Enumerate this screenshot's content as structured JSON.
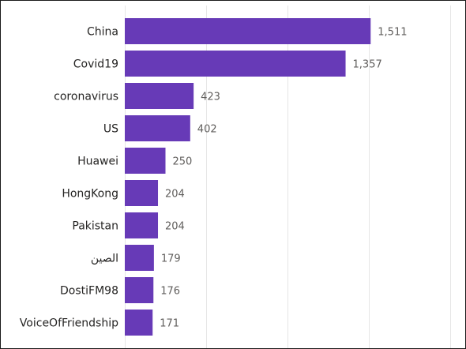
{
  "chart_data": {
    "type": "bar",
    "orientation": "horizontal",
    "title": "",
    "xlabel": "",
    "ylabel": "",
    "categories": [
      "China",
      "Covid19",
      "coronavirus",
      "US",
      "Huawei",
      "HongKong",
      "Pakistan",
      "الصين",
      "DostiFM98",
      "VoiceOfFriendship"
    ],
    "values": [
      1511,
      1357,
      423,
      402,
      250,
      204,
      204,
      179,
      176,
      171
    ],
    "value_labels": [
      "1,511",
      "1,357",
      "423",
      "402",
      "250",
      "204",
      "204",
      "179",
      "176",
      "171"
    ],
    "xlim": [
      0,
      2000
    ],
    "grid": true,
    "legend": "none",
    "bar_color": "#673AB7"
  }
}
